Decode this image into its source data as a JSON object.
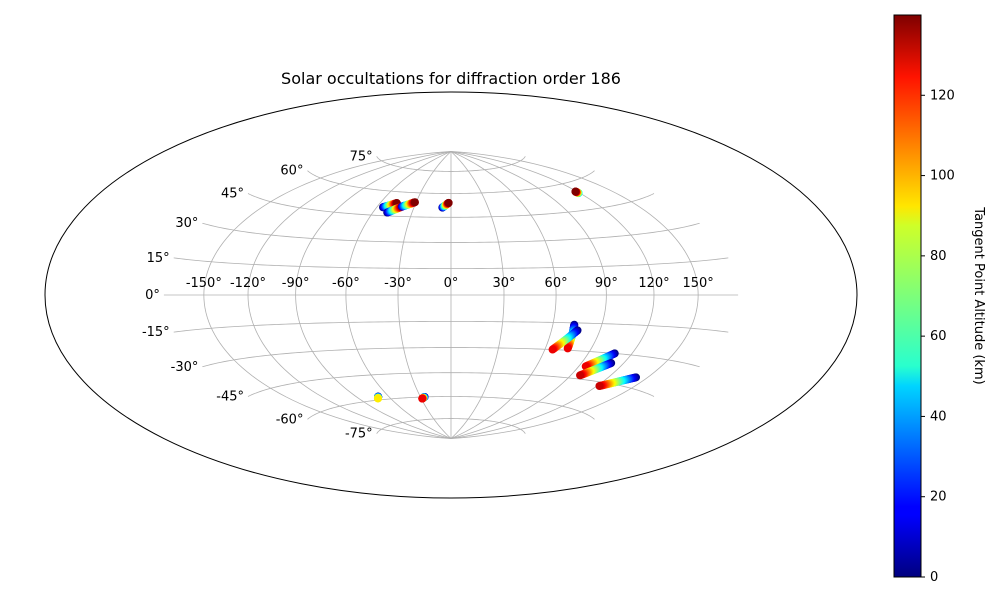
{
  "chart_data": {
    "type": "scatter",
    "projection": "hammer",
    "title": "Solar occultations for diffraction order 186",
    "grid": true,
    "lon_ticks": [
      -150,
      -120,
      -90,
      -60,
      -30,
      0,
      30,
      60,
      90,
      120,
      150
    ],
    "lon_tick_labels": [
      "-150°",
      "-120°",
      "-90°",
      "-60°",
      "-30°",
      "0°",
      "30°",
      "60°",
      "90°",
      "120°",
      "150°"
    ],
    "lat_ticks": [
      -75,
      -60,
      -45,
      -30,
      -15,
      0,
      15,
      30,
      45,
      60,
      75
    ],
    "lat_tick_labels": [
      "-75°",
      "-60°",
      "-45°",
      "-30°",
      "-15°",
      "0°",
      "15°",
      "30°",
      "45°",
      "60°",
      "75°"
    ],
    "colorbar": {
      "label": "Tangent Point Altitude (km)",
      "colormap": "jet",
      "range": [
        0,
        140
      ],
      "ticks": [
        0,
        20,
        40,
        60,
        80,
        100,
        120
      ],
      "tick_labels": [
        "0",
        "20",
        "40",
        "60",
        "80",
        "100",
        "120"
      ]
    },
    "series": [
      {
        "lon_start": -55,
        "lat_start": 50,
        "lon_end": -46,
        "lat_end": 53,
        "alt_start": 0,
        "alt_end": 140
      },
      {
        "lon_start": -49,
        "lat_start": 47,
        "lon_end": -40,
        "lat_end": 51,
        "alt_start": 0,
        "alt_end": 140
      },
      {
        "lon_start": -40,
        "lat_start": 51,
        "lon_end": -31,
        "lat_end": 54,
        "alt_start": 10,
        "alt_end": 140
      },
      {
        "lon_start": -7,
        "lat_start": 51,
        "lon_end": -2,
        "lat_end": 54,
        "alt_start": 0,
        "alt_end": 140
      },
      {
        "lon_start": 119,
        "lat_start": 54,
        "lon_end": 118.5,
        "lat_end": 55,
        "alt_start": 50,
        "alt_end": 140
      },
      {
        "lon_start": 73,
        "lat_start": -16,
        "lon_end": 74.5,
        "lat_end": -29,
        "alt_start": 0,
        "alt_end": 125
      },
      {
        "lon_start": 76,
        "lat_start": -19,
        "lon_end": 65,
        "lat_end": -30,
        "alt_start": 0,
        "alt_end": 125
      },
      {
        "lon_start": 108,
        "lat_start": -30,
        "lon_end": 95,
        "lat_end": -38,
        "alt_start": 0,
        "alt_end": 125
      },
      {
        "lon_start": 111,
        "lat_start": -35,
        "lon_end": 97,
        "lat_end": -43,
        "alt_start": 0,
        "alt_end": 130
      },
      {
        "lon_start": 141,
        "lat_start": -40,
        "lon_end": 122,
        "lat_end": -47,
        "alt_start": 0,
        "alt_end": 130
      },
      {
        "lon_start": -70,
        "lat_start": -58,
        "lon_end": -72,
        "lat_end": -59,
        "alt_start": 0,
        "alt_end": 90
      },
      {
        "lon_start": -26,
        "lat_start": -60,
        "lon_end": -29,
        "lat_end": -61,
        "alt_start": 0,
        "alt_end": 125
      }
    ]
  }
}
